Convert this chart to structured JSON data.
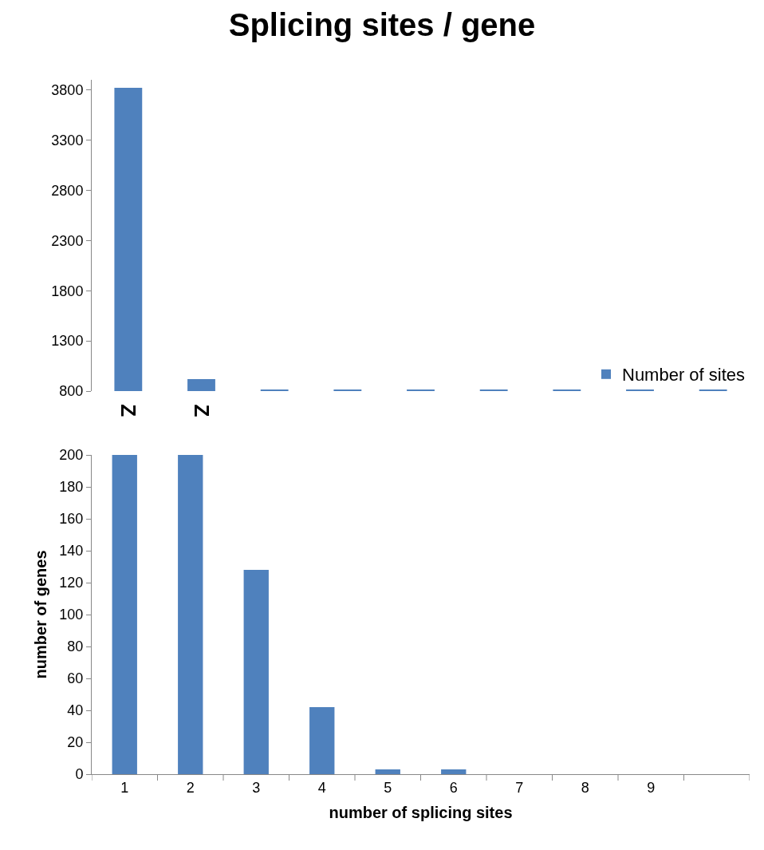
{
  "chart_data": [
    {
      "type": "bar",
      "title": "Splicing sites / gene",
      "categories": [
        null,
        null,
        null,
        null,
        null,
        null,
        null,
        null,
        null
      ],
      "series": [
        {
          "name": "Number of sites",
          "color": "#4f81bd",
          "values": [
            3820,
            920,
            815,
            815,
            815,
            815,
            815,
            815,
            815
          ]
        }
      ],
      "ylim": [
        800,
        3900
      ],
      "yticks": [
        800,
        1300,
        1800,
        2300,
        2800,
        3300,
        3800
      ],
      "grid": false,
      "legend": "bottom right",
      "tick_labels": "y",
      "annotations": [
        "Z",
        "Z"
      ]
    },
    {
      "type": "bar",
      "xlabel": "number of splicing sites",
      "ylabel": "number of genes",
      "categories": [
        "1",
        "2",
        "3",
        "4",
        "5",
        "6",
        "7",
        "8",
        "9",
        null
      ],
      "series": [
        {
          "color": "#4f81bd",
          "values": [
            200,
            200,
            128,
            42,
            3,
            3,
            0,
            0,
            0,
            null
          ]
        }
      ],
      "ylim": [
        0,
        200
      ],
      "yticks": [
        0,
        20,
        40,
        60,
        80,
        100,
        120,
        140,
        160,
        180,
        200
      ],
      "grid": false,
      "legend": false
    }
  ]
}
